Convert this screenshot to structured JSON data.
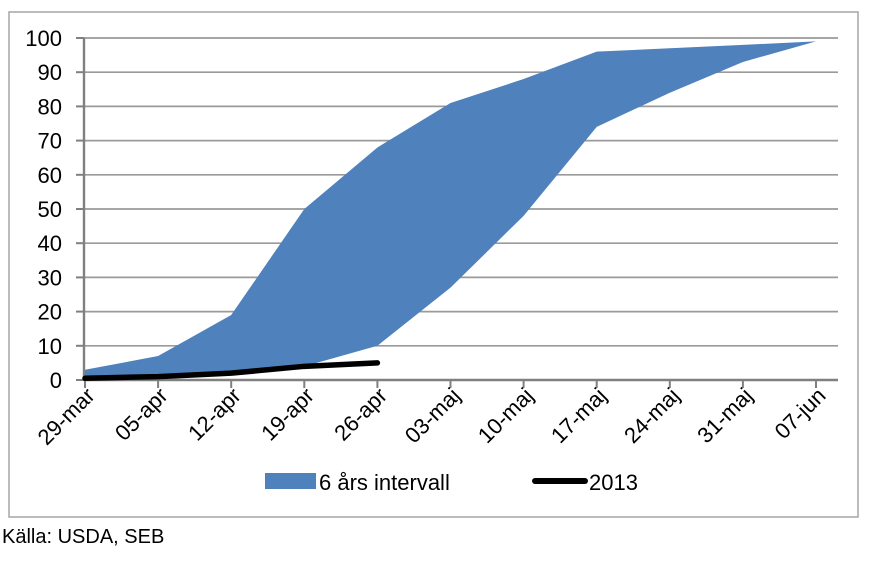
{
  "chart_data": {
    "type": "area",
    "title": "",
    "xlabel": "",
    "ylabel": "",
    "ylim": [
      0,
      100
    ],
    "y_ticks": [
      0,
      10,
      20,
      30,
      40,
      50,
      60,
      70,
      80,
      90,
      100
    ],
    "grid": true,
    "legend_position": "bottom",
    "categories": [
      "29-mar",
      "05-apr",
      "12-apr",
      "19-apr",
      "26-apr",
      "03-maj",
      "10-maj",
      "17-maj",
      "24-maj",
      "31-maj",
      "07-jun"
    ],
    "series": [
      {
        "name": "6 års intervall",
        "type": "band",
        "color": "#4F81BD",
        "upper": [
          3,
          7,
          19,
          50,
          68,
          81,
          88,
          96,
          97,
          98,
          99
        ],
        "lower": [
          0,
          1,
          2,
          4,
          10,
          27,
          48,
          74,
          84,
          93,
          99
        ]
      },
      {
        "name": "2013",
        "type": "line",
        "color": "#000000",
        "values": [
          0.5,
          1,
          2,
          4,
          5,
          null,
          null,
          null,
          null,
          null,
          null
        ]
      }
    ]
  },
  "legend": {
    "band_label": "6 års intervall",
    "line_label": "2013"
  },
  "source_note": "Källa: USDA, SEB",
  "colors": {
    "band": "#4F81BD",
    "line": "#000000",
    "grid": "#9A9A9A",
    "axis": "#808080",
    "border": "#A6A6A6",
    "text": "#000000"
  }
}
